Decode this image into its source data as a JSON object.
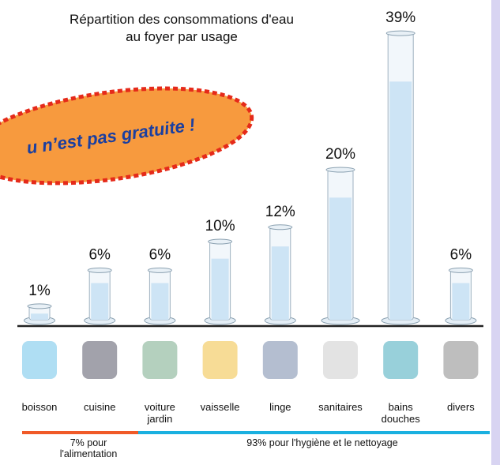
{
  "chart_data": {
    "type": "bar",
    "title": [
      "Répartition des consommations d'eau",
      "au foyer par usage"
    ],
    "banner": "u n’est pas gratuite !",
    "categories": [
      [
        "boisson"
      ],
      [
        "cuisine"
      ],
      [
        "voiture",
        "jardin"
      ],
      [
        "vaisselle"
      ],
      [
        "linge"
      ],
      [
        "sanitaires"
      ],
      [
        "bains",
        "douches"
      ],
      [
        "divers"
      ]
    ],
    "values": [
      1,
      6,
      6,
      10,
      12,
      20,
      39,
      6
    ],
    "value_labels": [
      "1%",
      "6%",
      "6%",
      "10%",
      "12%",
      "20%",
      "39%",
      "6%"
    ],
    "color": "#cde4f5",
    "groups": [
      {
        "label": [
          "7% pour",
          "l'alimentation"
        ],
        "color": "#f05a28"
      },
      {
        "label": [
          "93% pour l'hygiène et le nettoyage"
        ],
        "color": "#1ab0e0"
      }
    ]
  }
}
